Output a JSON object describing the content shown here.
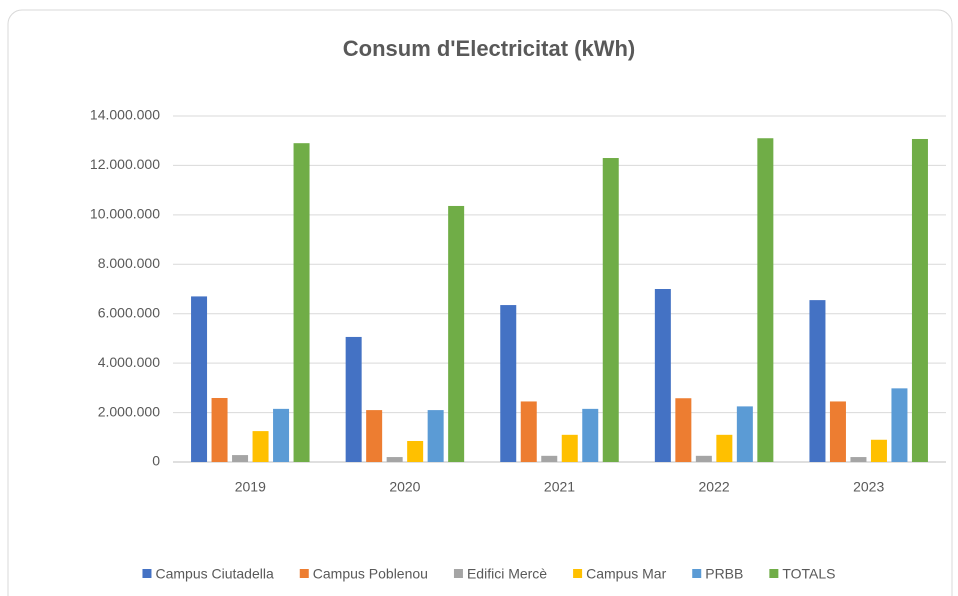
{
  "chart_data": {
    "type": "bar",
    "title": "Consum d'Electricitat (kWh)",
    "categories": [
      "2019",
      "2020",
      "2021",
      "2022",
      "2023"
    ],
    "series": [
      {
        "name": "Campus Ciutadella",
        "color": "#4472c4",
        "values": [
          6700000,
          5060000,
          6350000,
          7000000,
          6550000
        ]
      },
      {
        "name": "Campus Poblenou",
        "color": "#ed7d31",
        "values": [
          2590000,
          2100000,
          2450000,
          2580000,
          2450000
        ]
      },
      {
        "name": "Edifici Mercè",
        "color": "#a5a5a5",
        "values": [
          280000,
          200000,
          250000,
          250000,
          200000
        ]
      },
      {
        "name": "Campus Mar",
        "color": "#ffc000",
        "values": [
          1250000,
          850000,
          1100000,
          1100000,
          900000
        ]
      },
      {
        "name": "PRBB",
        "color": "#5b9bd5",
        "values": [
          2150000,
          2100000,
          2150000,
          2250000,
          2980000
        ]
      },
      {
        "name": "TOTALS",
        "color": "#70ad47",
        "values": [
          12900000,
          10360000,
          12300000,
          13100000,
          13070000
        ]
      }
    ],
    "ylim": [
      0,
      14000000
    ],
    "yticks": [
      0,
      {
        "value": 2000000,
        "label": "2.000.000"
      },
      {
        "value": 4000000,
        "label": "4.000.000"
      },
      {
        "value": 6000000,
        "label": "6.000.000"
      },
      {
        "value": 8000000,
        "label": "8.000.000"
      },
      {
        "value": 10000000,
        "label": "10.000.000"
      },
      {
        "value": 12000000,
        "label": "12.000.000"
      },
      {
        "value": 14000000,
        "label": "14.000.000"
      }
    ],
    "grid": true,
    "legend": "bottom"
  }
}
